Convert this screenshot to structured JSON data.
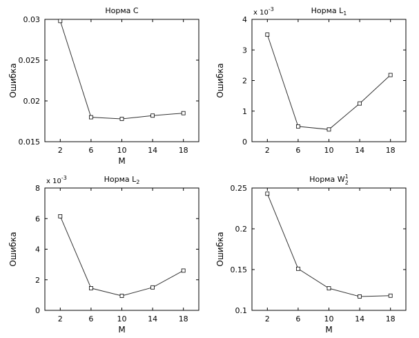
{
  "chart_data": [
    {
      "type": "line",
      "title": "Норма C",
      "title_sub": "",
      "title_sup": "",
      "xlabel": "M",
      "ylabel": "Ошибка",
      "y_multiplier": "",
      "categories": [
        "2",
        "6",
        "10",
        "14",
        "18"
      ],
      "x": [
        2,
        6,
        10,
        14,
        18
      ],
      "values": [
        0.0298,
        0.018,
        0.0178,
        0.0182,
        0.0185
      ],
      "xlim": [
        0,
        20
      ],
      "ylim": [
        0.015,
        0.03
      ],
      "yticks": [
        0.015,
        0.02,
        0.025,
        0.03
      ],
      "ytick_labels": [
        "0.015",
        "0.02",
        "0.025",
        "0.03"
      ],
      "grid": false,
      "marker": "square",
      "line_color": "#333333"
    },
    {
      "type": "line",
      "title": "Норма L",
      "title_sub": "1",
      "title_sup": "",
      "xlabel": "",
      "ylabel": "Ошибка",
      "y_multiplier": "x 10",
      "y_multiplier_exp": "-3",
      "categories": [
        "2",
        "6",
        "10",
        "14",
        "18"
      ],
      "x": [
        2,
        6,
        10,
        14,
        18
      ],
      "values": [
        3.5,
        0.5,
        0.4,
        1.25,
        2.18
      ],
      "xlim": [
        0,
        20
      ],
      "ylim": [
        0,
        4
      ],
      "yticks": [
        0,
        1,
        2,
        3,
        4
      ],
      "ytick_labels": [
        "0",
        "1",
        "2",
        "3",
        "4"
      ],
      "grid": false,
      "marker": "square",
      "line_color": "#333333"
    },
    {
      "type": "line",
      "title": "Норма L",
      "title_sub": "2",
      "title_sup": "",
      "xlabel": "M",
      "ylabel": "Ошибка",
      "y_multiplier": "x 10",
      "y_multiplier_exp": "-3",
      "categories": [
        "2",
        "6",
        "10",
        "14",
        "18"
      ],
      "x": [
        2,
        6,
        10,
        14,
        18
      ],
      "values": [
        6.15,
        1.45,
        0.95,
        1.5,
        2.6
      ],
      "xlim": [
        0,
        20
      ],
      "ylim": [
        0,
        8
      ],
      "yticks": [
        0,
        2,
        4,
        6,
        8
      ],
      "ytick_labels": [
        "0",
        "2",
        "4",
        "6",
        "8"
      ],
      "grid": false,
      "marker": "square",
      "line_color": "#333333"
    },
    {
      "type": "line",
      "title": "Норма W",
      "title_sub": "2",
      "title_sup": "1",
      "xlabel": "M",
      "ylabel": "Ошибка",
      "y_multiplier": "",
      "categories": [
        "2",
        "6",
        "10",
        "14",
        "18"
      ],
      "x": [
        2,
        6,
        10,
        14,
        18
      ],
      "values": [
        0.243,
        0.151,
        0.127,
        0.117,
        0.118
      ],
      "xlim": [
        0,
        20
      ],
      "ylim": [
        0.1,
        0.25
      ],
      "yticks": [
        0.1,
        0.15,
        0.2,
        0.25
      ],
      "ytick_labels": [
        "0.1",
        "0.15",
        "0.2",
        "0.25"
      ],
      "grid": false,
      "marker": "square",
      "line_color": "#333333"
    }
  ]
}
